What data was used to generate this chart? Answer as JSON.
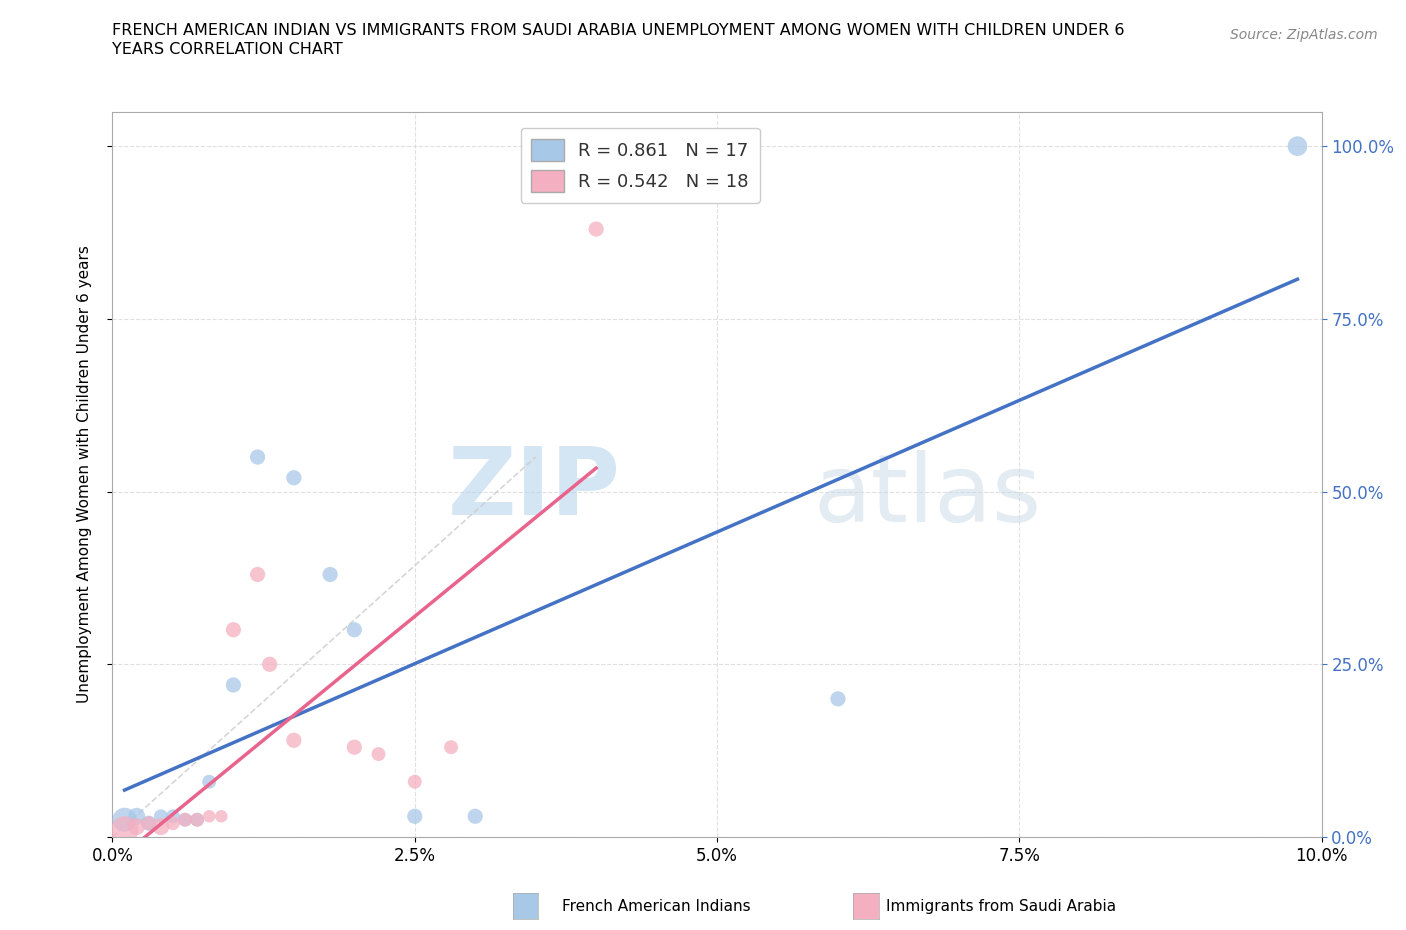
{
  "title_line1": "FRENCH AMERICAN INDIAN VS IMMIGRANTS FROM SAUDI ARABIA UNEMPLOYMENT AMONG WOMEN WITH CHILDREN UNDER 6",
  "title_line2": "YEARS CORRELATION CHART",
  "source": "Source: ZipAtlas.com",
  "ylabel": "Unemployment Among Women with Children Under 6 years",
  "xlim": [
    0,
    0.1
  ],
  "ylim": [
    0,
    1.05
  ],
  "xticks": [
    0.0,
    0.025,
    0.05,
    0.075,
    0.1
  ],
  "yticks": [
    0.0,
    0.25,
    0.5,
    0.75,
    1.0
  ],
  "blue_color": "#a8c8e8",
  "pink_color": "#f4afc0",
  "blue_line_color": "#4472c4",
  "pink_line_color": "#e8648c",
  "gray_dash_color": "#cccccc",
  "R_blue": 0.861,
  "N_blue": 17,
  "R_pink": 0.542,
  "N_pink": 18,
  "watermark_zip": "ZIP",
  "watermark_atlas": "atlas",
  "blue_points": [
    [
      0.001,
      0.025
    ],
    [
      0.002,
      0.03
    ],
    [
      0.003,
      0.02
    ],
    [
      0.004,
      0.03
    ],
    [
      0.005,
      0.03
    ],
    [
      0.006,
      0.025
    ],
    [
      0.007,
      0.025
    ],
    [
      0.008,
      0.08
    ],
    [
      0.01,
      0.22
    ],
    [
      0.012,
      0.55
    ],
    [
      0.015,
      0.52
    ],
    [
      0.018,
      0.38
    ],
    [
      0.02,
      0.3
    ],
    [
      0.025,
      0.03
    ],
    [
      0.03,
      0.03
    ],
    [
      0.06,
      0.2
    ],
    [
      0.098,
      1.0
    ]
  ],
  "pink_points": [
    [
      0.001,
      0.01
    ],
    [
      0.002,
      0.015
    ],
    [
      0.003,
      0.02
    ],
    [
      0.004,
      0.015
    ],
    [
      0.005,
      0.02
    ],
    [
      0.006,
      0.025
    ],
    [
      0.007,
      0.025
    ],
    [
      0.008,
      0.03
    ],
    [
      0.009,
      0.03
    ],
    [
      0.01,
      0.3
    ],
    [
      0.012,
      0.38
    ],
    [
      0.013,
      0.25
    ],
    [
      0.015,
      0.14
    ],
    [
      0.02,
      0.13
    ],
    [
      0.022,
      0.12
    ],
    [
      0.025,
      0.08
    ],
    [
      0.028,
      0.13
    ],
    [
      0.04,
      0.88
    ]
  ],
  "blue_sizes": [
    300,
    150,
    120,
    100,
    100,
    100,
    100,
    100,
    120,
    120,
    120,
    120,
    120,
    120,
    120,
    120,
    200
  ],
  "pink_sizes": [
    400,
    150,
    100,
    150,
    100,
    100,
    100,
    80,
    80,
    120,
    120,
    120,
    120,
    120,
    100,
    100,
    100,
    120
  ]
}
